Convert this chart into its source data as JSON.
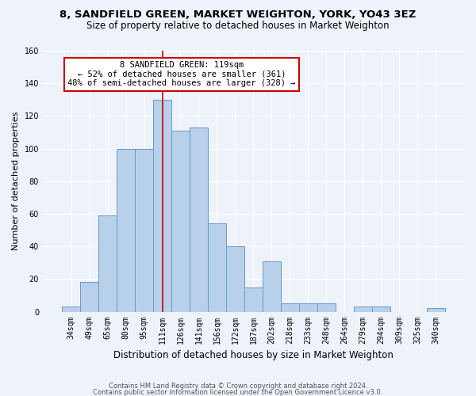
{
  "title": "8, SANDFIELD GREEN, MARKET WEIGHTON, YORK, YO43 3EZ",
  "subtitle": "Size of property relative to detached houses in Market Weighton",
  "xlabel": "Distribution of detached houses by size in Market Weighton",
  "ylabel": "Number of detached properties",
  "bar_labels": [
    "34sqm",
    "49sqm",
    "65sqm",
    "80sqm",
    "95sqm",
    "111sqm",
    "126sqm",
    "141sqm",
    "156sqm",
    "172sqm",
    "187sqm",
    "202sqm",
    "218sqm",
    "233sqm",
    "248sqm",
    "264sqm",
    "279sqm",
    "294sqm",
    "309sqm",
    "325sqm",
    "340sqm"
  ],
  "bar_values": [
    3,
    18,
    59,
    100,
    100,
    130,
    111,
    113,
    54,
    40,
    15,
    31,
    5,
    5,
    5,
    0,
    3,
    3,
    0,
    0,
    2
  ],
  "bar_color": "#b8d0ea",
  "bar_edge_color": "#6699cc",
  "bg_color": "#eef2fb",
  "grid_color": "#ffffff",
  "vline_x_index": 5,
  "vline_color": "#cc0000",
  "annotation_text": "8 SANDFIELD GREEN: 119sqm\n← 52% of detached houses are smaller (361)\n48% of semi-detached houses are larger (328) →",
  "annotation_box_color": "#ffffff",
  "annotation_box_edge": "#cc0000",
  "footer1": "Contains HM Land Registry data © Crown copyright and database right 2024.",
  "footer2": "Contains public sector information licensed under the Open Government Licence v3.0.",
  "ylim": [
    0,
    160
  ],
  "yticks": [
    0,
    20,
    40,
    60,
    80,
    100,
    120,
    140,
    160
  ],
  "title_fontsize": 9.5,
  "subtitle_fontsize": 8.5,
  "tick_fontsize": 7,
  "ylabel_fontsize": 8,
  "xlabel_fontsize": 8.5,
  "footer_fontsize": 6,
  "ann_fontsize": 7.5
}
